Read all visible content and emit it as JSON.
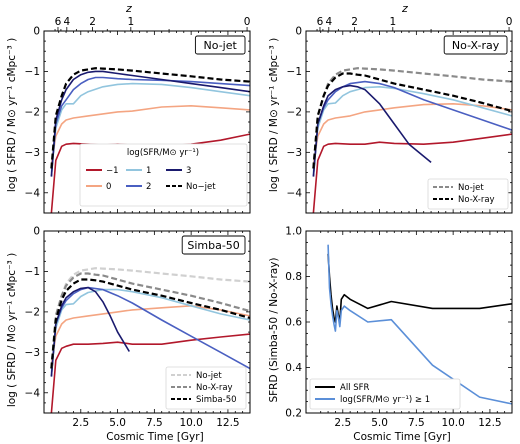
{
  "figure": {
    "top_axis_label": "z",
    "top_ticks": [
      "6",
      "4",
      "2",
      "1",
      "0"
    ],
    "x_label": "Cosmic Time [Gyr]",
    "y_label_sfrd": "log ( SFRD / M⊙ yr⁻¹ cMpc⁻³ )",
    "y_label_ratio": "SFRD (Simba-50 / No-X-ray)",
    "x_ticks": [
      "2.5",
      "5.0",
      "7.5",
      "10.0",
      "12.5"
    ],
    "y_ticks_sfrd": [
      "0",
      "-1",
      "-2",
      "-3",
      "-4"
    ],
    "y_ticks_ratio": [
      "1.0",
      "0.8",
      "0.6",
      "0.4",
      "0.2"
    ],
    "colors": {
      "m1": "#b2182b",
      "zero": "#f4a582",
      "one": "#92c5de",
      "two": "#4a5fc1",
      "three": "#1a1a6e",
      "nojet": "#000000",
      "nojet_gray": "#8a8a8a",
      "nojet_light": "#d0d0d0",
      "allsfr": "#000000",
      "highsfr": "#5b8fd8"
    }
  },
  "chart_data": [
    {
      "panel": "No-jet",
      "type": "line",
      "xlim": [
        0,
        14
      ],
      "ylim": [
        -4.5,
        0
      ],
      "legend_title": "log(SFR/M⊙ yr⁻¹)",
      "legend_placement": "lower-right",
      "series": [
        {
          "name": "-1",
          "color": "#b2182b",
          "dash": false,
          "x": [
            0.5,
            0.8,
            1.2,
            1.5,
            2,
            3,
            4,
            5,
            6,
            8,
            10,
            12,
            14
          ],
          "y": [
            -4.5,
            -3.2,
            -2.85,
            -2.8,
            -2.78,
            -2.8,
            -2.82,
            -2.8,
            -2.82,
            -2.85,
            -2.8,
            -2.7,
            -2.55
          ]
        },
        {
          "name": "0",
          "color": "#f4a582",
          "dash": false,
          "x": [
            0.5,
            0.8,
            1.2,
            1.5,
            2,
            3,
            4,
            5,
            6,
            8,
            10,
            12,
            14
          ],
          "y": [
            -3.3,
            -2.6,
            -2.3,
            -2.2,
            -2.15,
            -2.1,
            -2.05,
            -2.0,
            -1.98,
            -1.88,
            -1.85,
            -1.9,
            -1.95
          ]
        },
        {
          "name": "1",
          "color": "#92c5de",
          "dash": false,
          "x": [
            0.5,
            0.8,
            1.2,
            1.5,
            2,
            2.5,
            3,
            4,
            5,
            6,
            8,
            10,
            12,
            14
          ],
          "y": [
            -3.5,
            -2.4,
            -1.95,
            -1.8,
            -1.8,
            -1.6,
            -1.5,
            -1.38,
            -1.32,
            -1.3,
            -1.32,
            -1.4,
            -1.5,
            -1.6
          ]
        },
        {
          "name": "2",
          "color": "#4a5fc1",
          "dash": false,
          "x": [
            0.5,
            0.8,
            1.2,
            1.5,
            2,
            2.5,
            3,
            3.5,
            4,
            5,
            6,
            8,
            10,
            12,
            14
          ],
          "y": [
            -3.6,
            -2.3,
            -1.85,
            -1.7,
            -1.45,
            -1.3,
            -1.2,
            -1.15,
            -1.15,
            -1.18,
            -1.2,
            -1.22,
            -1.25,
            -1.3,
            -1.35
          ]
        },
        {
          "name": "3",
          "color": "#1a1a6e",
          "dash": false,
          "x": [
            0.5,
            0.8,
            1.2,
            1.5,
            2,
            2.5,
            3,
            3.5,
            4,
            5,
            6,
            8,
            10,
            12,
            14
          ],
          "y": [
            -3.6,
            -2.2,
            -1.7,
            -1.45,
            -1.2,
            -1.08,
            -1.02,
            -1.0,
            -1.0,
            -1.05,
            -1.1,
            -1.2,
            -1.3,
            -1.4,
            -1.5
          ]
        },
        {
          "name": "No-jet",
          "color": "#000000",
          "dash": true,
          "x": [
            0.5,
            0.8,
            1.2,
            1.5,
            2,
            2.5,
            3,
            3.5,
            4,
            5,
            6,
            8,
            10,
            12,
            14
          ],
          "y": [
            -3.4,
            -2.1,
            -1.6,
            -1.3,
            -1.08,
            -0.98,
            -0.95,
            -0.92,
            -0.93,
            -0.95,
            -0.98,
            -1.05,
            -1.12,
            -1.2,
            -1.25
          ]
        }
      ]
    },
    {
      "panel": "No-X-ray",
      "type": "line",
      "xlim": [
        0,
        14
      ],
      "ylim": [
        -4.5,
        0
      ],
      "legend_placement": "lower-right",
      "series": [
        {
          "name": "",
          "color": "#b2182b",
          "dash": false,
          "x": [
            0.5,
            0.8,
            1.2,
            1.5,
            2,
            3,
            4,
            5,
            6,
            8,
            10,
            12,
            14
          ],
          "y": [
            -4.5,
            -3.2,
            -2.85,
            -2.8,
            -2.78,
            -2.8,
            -2.8,
            -2.75,
            -2.78,
            -2.8,
            -2.75,
            -2.65,
            -2.55
          ]
        },
        {
          "name": "",
          "color": "#f4a582",
          "dash": false,
          "x": [
            0.5,
            0.8,
            1.2,
            1.5,
            2,
            3,
            4,
            5,
            6,
            8,
            10,
            12,
            14
          ],
          "y": [
            -3.3,
            -2.6,
            -2.3,
            -2.2,
            -2.15,
            -2.1,
            -2.0,
            -1.95,
            -1.9,
            -1.82,
            -1.8,
            -1.85,
            -1.95
          ]
        },
        {
          "name": "",
          "color": "#92c5de",
          "dash": false,
          "x": [
            0.5,
            0.8,
            1.2,
            1.5,
            2,
            2.5,
            3,
            4,
            5,
            6,
            8,
            10,
            12,
            14
          ],
          "y": [
            -3.5,
            -2.4,
            -1.95,
            -1.8,
            -1.78,
            -1.6,
            -1.5,
            -1.4,
            -1.38,
            -1.42,
            -1.55,
            -1.7,
            -1.9,
            -2.1
          ]
        },
        {
          "name": "",
          "color": "#4a5fc1",
          "dash": false,
          "x": [
            0.5,
            0.8,
            1.2,
            1.5,
            2,
            2.5,
            3,
            4,
            5,
            6,
            8,
            10,
            12,
            14
          ],
          "y": [
            -3.6,
            -2.3,
            -1.9,
            -1.7,
            -1.5,
            -1.38,
            -1.3,
            -1.25,
            -1.3,
            -1.4,
            -1.7,
            -1.95,
            -2.2,
            -2.45
          ]
        },
        {
          "name": "",
          "color": "#1a1a6e",
          "dash": false,
          "x": [
            0.5,
            0.8,
            1.2,
            1.5,
            2,
            2.5,
            3,
            3.5,
            4,
            5,
            6,
            7,
            8.5
          ],
          "y": [
            -3.6,
            -2.3,
            -1.85,
            -1.6,
            -1.45,
            -1.38,
            -1.35,
            -1.38,
            -1.45,
            -1.8,
            -2.3,
            -2.8,
            -3.25
          ]
        },
        {
          "name": "No-jet",
          "color": "#8a8a8a",
          "dash": true,
          "x": [
            0.5,
            0.8,
            1.2,
            1.5,
            2,
            2.5,
            3,
            3.5,
            4,
            5,
            6,
            8,
            10,
            12,
            14
          ],
          "y": [
            -3.4,
            -2.1,
            -1.6,
            -1.3,
            -1.08,
            -0.98,
            -0.95,
            -0.92,
            -0.93,
            -0.95,
            -0.98,
            -1.05,
            -1.12,
            -1.2,
            -1.25
          ]
        },
        {
          "name": "No-X-ray",
          "color": "#000000",
          "dash": true,
          "x": [
            0.5,
            0.8,
            1.2,
            1.5,
            2,
            2.5,
            3,
            3.5,
            4,
            5,
            6,
            8,
            10,
            12,
            14
          ],
          "y": [
            -3.4,
            -2.1,
            -1.6,
            -1.35,
            -1.15,
            -1.05,
            -1.05,
            -1.08,
            -1.1,
            -1.2,
            -1.3,
            -1.45,
            -1.6,
            -1.78,
            -1.98
          ]
        }
      ]
    },
    {
      "panel": "Simba-50",
      "type": "line",
      "xlim": [
        0,
        14
      ],
      "ylim": [
        -4.5,
        0
      ],
      "legend_placement": "lower-right",
      "series": [
        {
          "name": "",
          "color": "#b2182b",
          "dash": false,
          "x": [
            0.5,
            0.8,
            1.2,
            1.5,
            2,
            3,
            4,
            5,
            6,
            8,
            10,
            12,
            14
          ],
          "y": [
            -4.5,
            -3.2,
            -2.9,
            -2.85,
            -2.8,
            -2.8,
            -2.78,
            -2.75,
            -2.8,
            -2.8,
            -2.7,
            -2.62,
            -2.55
          ]
        },
        {
          "name": "",
          "color": "#f4a582",
          "dash": false,
          "x": [
            0.5,
            0.8,
            1.2,
            1.5,
            2,
            3,
            4,
            5,
            6,
            8,
            10,
            12,
            14
          ],
          "y": [
            -3.3,
            -2.6,
            -2.3,
            -2.2,
            -2.15,
            -2.1,
            -2.05,
            -2.0,
            -1.95,
            -1.9,
            -1.85,
            -1.95,
            -2.1
          ]
        },
        {
          "name": "",
          "color": "#92c5de",
          "dash": false,
          "x": [
            0.5,
            0.8,
            1.2,
            1.5,
            2,
            2.5,
            3,
            4,
            5,
            6,
            8,
            10,
            12,
            14
          ],
          "y": [
            -3.5,
            -2.4,
            -1.95,
            -1.82,
            -1.8,
            -1.62,
            -1.52,
            -1.45,
            -1.45,
            -1.5,
            -1.65,
            -1.85,
            -2.05,
            -2.2
          ]
        },
        {
          "name": "",
          "color": "#4a5fc1",
          "dash": false,
          "x": [
            0.5,
            0.8,
            1.2,
            1.5,
            2,
            2.5,
            3,
            4,
            5,
            6,
            8,
            10,
            12,
            14
          ],
          "y": [
            -3.6,
            -2.3,
            -1.9,
            -1.72,
            -1.55,
            -1.45,
            -1.4,
            -1.45,
            -1.6,
            -1.78,
            -2.2,
            -2.6,
            -3.0,
            -3.4
          ]
        },
        {
          "name": "",
          "color": "#1a1a6e",
          "dash": false,
          "x": [
            0.5,
            0.8,
            1.2,
            1.5,
            2,
            2.5,
            3,
            3.5,
            4,
            4.5,
            5,
            5.8
          ],
          "y": [
            -3.6,
            -2.3,
            -1.85,
            -1.65,
            -1.5,
            -1.42,
            -1.4,
            -1.5,
            -1.75,
            -2.1,
            -2.5,
            -2.98
          ]
        },
        {
          "name": "No-jet",
          "color": "#d0d0d0",
          "dash": true,
          "x": [
            0.5,
            0.8,
            1.2,
            1.5,
            2,
            2.5,
            3,
            3.5,
            4,
            5,
            6,
            8,
            10,
            12,
            14
          ],
          "y": [
            -3.4,
            -2.1,
            -1.6,
            -1.3,
            -1.08,
            -0.98,
            -0.95,
            -0.92,
            -0.93,
            -0.95,
            -0.98,
            -1.05,
            -1.12,
            -1.2,
            -1.25
          ]
        },
        {
          "name": "No-X-ray",
          "color": "#8a8a8a",
          "dash": true,
          "x": [
            0.5,
            0.8,
            1.2,
            1.5,
            2,
            2.5,
            3,
            3.5,
            4,
            5,
            6,
            8,
            10,
            12,
            14
          ],
          "y": [
            -3.4,
            -2.1,
            -1.6,
            -1.35,
            -1.15,
            -1.05,
            -1.05,
            -1.08,
            -1.1,
            -1.2,
            -1.3,
            -1.45,
            -1.6,
            -1.78,
            -1.98
          ]
        },
        {
          "name": "Simba-50",
          "color": "#000000",
          "dash": true,
          "x": [
            0.5,
            0.8,
            1.2,
            1.5,
            2,
            2.5,
            3,
            3.5,
            4,
            5,
            6,
            8,
            10,
            12,
            14
          ],
          "y": [
            -3.4,
            -2.2,
            -1.7,
            -1.48,
            -1.3,
            -1.2,
            -1.2,
            -1.22,
            -1.25,
            -1.35,
            -1.45,
            -1.6,
            -1.78,
            -1.95,
            -2.15
          ]
        }
      ]
    },
    {
      "panel": "ratio",
      "type": "line",
      "xlim": [
        0,
        14
      ],
      "ylim": [
        0.2,
        1.0
      ],
      "legend_placement": "lower-left",
      "series": [
        {
          "name": "All SFR",
          "color": "#000000",
          "dash": false,
          "x": [
            1.5,
            1.6,
            1.7,
            1.8,
            1.9,
            2.0,
            2.1,
            2.2,
            2.3,
            2.4,
            2.6,
            3.0,
            4.2,
            5.8,
            8.6,
            11.8,
            14
          ],
          "y": [
            0.9,
            0.8,
            0.72,
            0.66,
            0.62,
            0.6,
            0.67,
            0.63,
            0.6,
            0.7,
            0.72,
            0.7,
            0.66,
            0.69,
            0.66,
            0.66,
            0.68
          ]
        },
        {
          "name": "log(SFR/M⊙ yr⁻¹) ≥ 1",
          "color": "#5b8fd8",
          "dash": false,
          "x": [
            1.5,
            1.6,
            1.7,
            1.8,
            1.9,
            2.0,
            2.1,
            2.2,
            2.3,
            2.4,
            2.6,
            3.0,
            4.2,
            5.8,
            8.6,
            11.8,
            14
          ],
          "y": [
            0.94,
            0.75,
            0.68,
            0.63,
            0.59,
            0.56,
            0.65,
            0.62,
            0.58,
            0.65,
            0.67,
            0.65,
            0.6,
            0.61,
            0.41,
            0.27,
            0.24
          ]
        }
      ]
    }
  ]
}
